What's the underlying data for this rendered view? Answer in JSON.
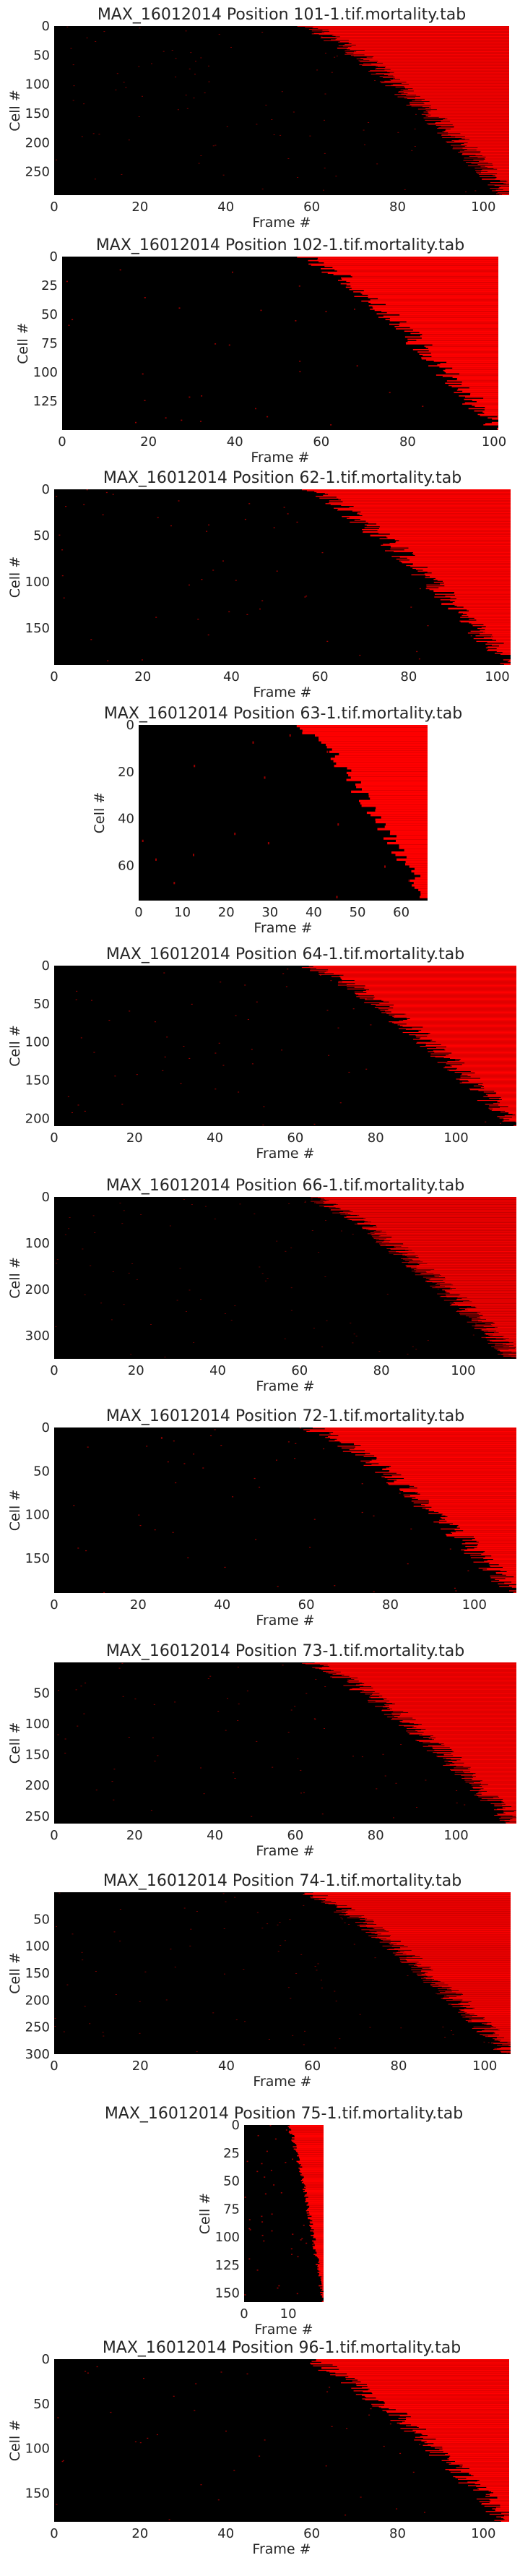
{
  "figure": {
    "background": "#ffffff",
    "heatmap_background": "#000000",
    "cell_color": "#ff0000"
  },
  "chart_data": [
    {
      "type": "heatmap",
      "title": "MAX_16012014 Position 101-1.tif.mortality.tab",
      "xlabel": "Frame #",
      "ylabel": "Cell #",
      "xlim": [
        0,
        106
      ],
      "ylim": [
        290,
        0
      ],
      "xticks": [
        0,
        20,
        40,
        60,
        80,
        100
      ],
      "yticks": [
        0,
        50,
        100,
        150,
        200,
        250
      ]
    },
    {
      "type": "heatmap",
      "title": "MAX_16012014 Position 102-1.tif.mortality.tab",
      "xlabel": "Frame #",
      "ylabel": "Cell #",
      "xlim": [
        0,
        101
      ],
      "ylim": [
        150,
        0
      ],
      "xticks": [
        0,
        20,
        40,
        60,
        80,
        100
      ],
      "yticks": [
        0,
        25,
        50,
        75,
        100,
        125
      ]
    },
    {
      "type": "heatmap",
      "title": "MAX_16012014 Position 62-1.tif.mortality.tab",
      "xlabel": "Frame #",
      "ylabel": "Cell #",
      "xlim": [
        0,
        103
      ],
      "ylim": [
        190,
        0
      ],
      "xticks": [
        0,
        20,
        40,
        60,
        80,
        100
      ],
      "yticks": [
        0,
        50,
        100,
        150
      ]
    },
    {
      "type": "heatmap",
      "title": "MAX_16012014 Position 63-1.tif.mortality.tab",
      "xlabel": "Frame #",
      "ylabel": "Cell #",
      "xlim": [
        0,
        66
      ],
      "ylim": [
        75,
        0
      ],
      "xticks": [
        0,
        10,
        20,
        30,
        40,
        50,
        60
      ],
      "yticks": [
        0,
        20,
        40,
        60
      ]
    },
    {
      "type": "heatmap",
      "title": "MAX_16012014 Position 64-1.tif.mortality.tab",
      "xlabel": "Frame #",
      "ylabel": "Cell #",
      "xlim": [
        0,
        115
      ],
      "ylim": [
        210,
        0
      ],
      "xticks": [
        0,
        20,
        40,
        60,
        80,
        100
      ],
      "yticks": [
        0,
        50,
        100,
        150,
        200
      ]
    },
    {
      "type": "heatmap",
      "title": "MAX_16012014 Position 66-1.tif.mortality.tab",
      "xlabel": "Frame #",
      "ylabel": "Cell #",
      "xlim": [
        0,
        113
      ],
      "ylim": [
        350,
        0
      ],
      "xticks": [
        0,
        20,
        40,
        60,
        80,
        100
      ],
      "yticks": [
        0,
        100,
        200,
        300
      ]
    },
    {
      "type": "heatmap",
      "title": "MAX_16012014 Position 72-1.tif.mortality.tab",
      "xlabel": "Frame #",
      "ylabel": "Cell #",
      "xlim": [
        0,
        110
      ],
      "ylim": [
        190,
        0
      ],
      "xticks": [
        0,
        20,
        40,
        60,
        80,
        100
      ],
      "yticks": [
        0,
        50,
        100,
        150
      ]
    },
    {
      "type": "heatmap",
      "title": "MAX_16012014 Position 73-1.tif.mortality.tab",
      "xlabel": "Frame #",
      "ylabel": "Cell #",
      "xlim": [
        0,
        115
      ],
      "ylim": [
        262,
        0
      ],
      "xticks": [
        0,
        20,
        40,
        60,
        80,
        100
      ],
      "yticks": [
        50,
        100,
        150,
        200,
        250
      ]
    },
    {
      "type": "heatmap",
      "title": "MAX_16012014 Position 74-1.tif.mortality.tab",
      "xlabel": "Frame #",
      "ylabel": "Cell #",
      "xlim": [
        0,
        106
      ],
      "ylim": [
        300,
        0
      ],
      "xticks": [
        0,
        20,
        40,
        60,
        80,
        100
      ],
      "yticks": [
        50,
        100,
        150,
        200,
        250,
        300
      ]
    },
    {
      "type": "heatmap",
      "title": "MAX_16012014 Position 75-1.tif.mortality.tab",
      "xlabel": "Frame #",
      "ylabel": "Cell #",
      "xlim": [
        0,
        18
      ],
      "ylim": [
        158,
        0
      ],
      "xticks": [
        0,
        10
      ],
      "yticks": [
        0,
        25,
        50,
        75,
        100,
        125,
        150
      ]
    },
    {
      "type": "heatmap",
      "title": "MAX_16012014 Position 96-1.tif.mortality.tab",
      "xlabel": "Frame #",
      "ylabel": "Cell #",
      "xlim": [
        0,
        106
      ],
      "ylim": [
        182,
        0
      ],
      "xticks": [
        0,
        20,
        40,
        60,
        80,
        100
      ],
      "yticks": [
        0,
        50,
        100,
        150
      ]
    }
  ]
}
